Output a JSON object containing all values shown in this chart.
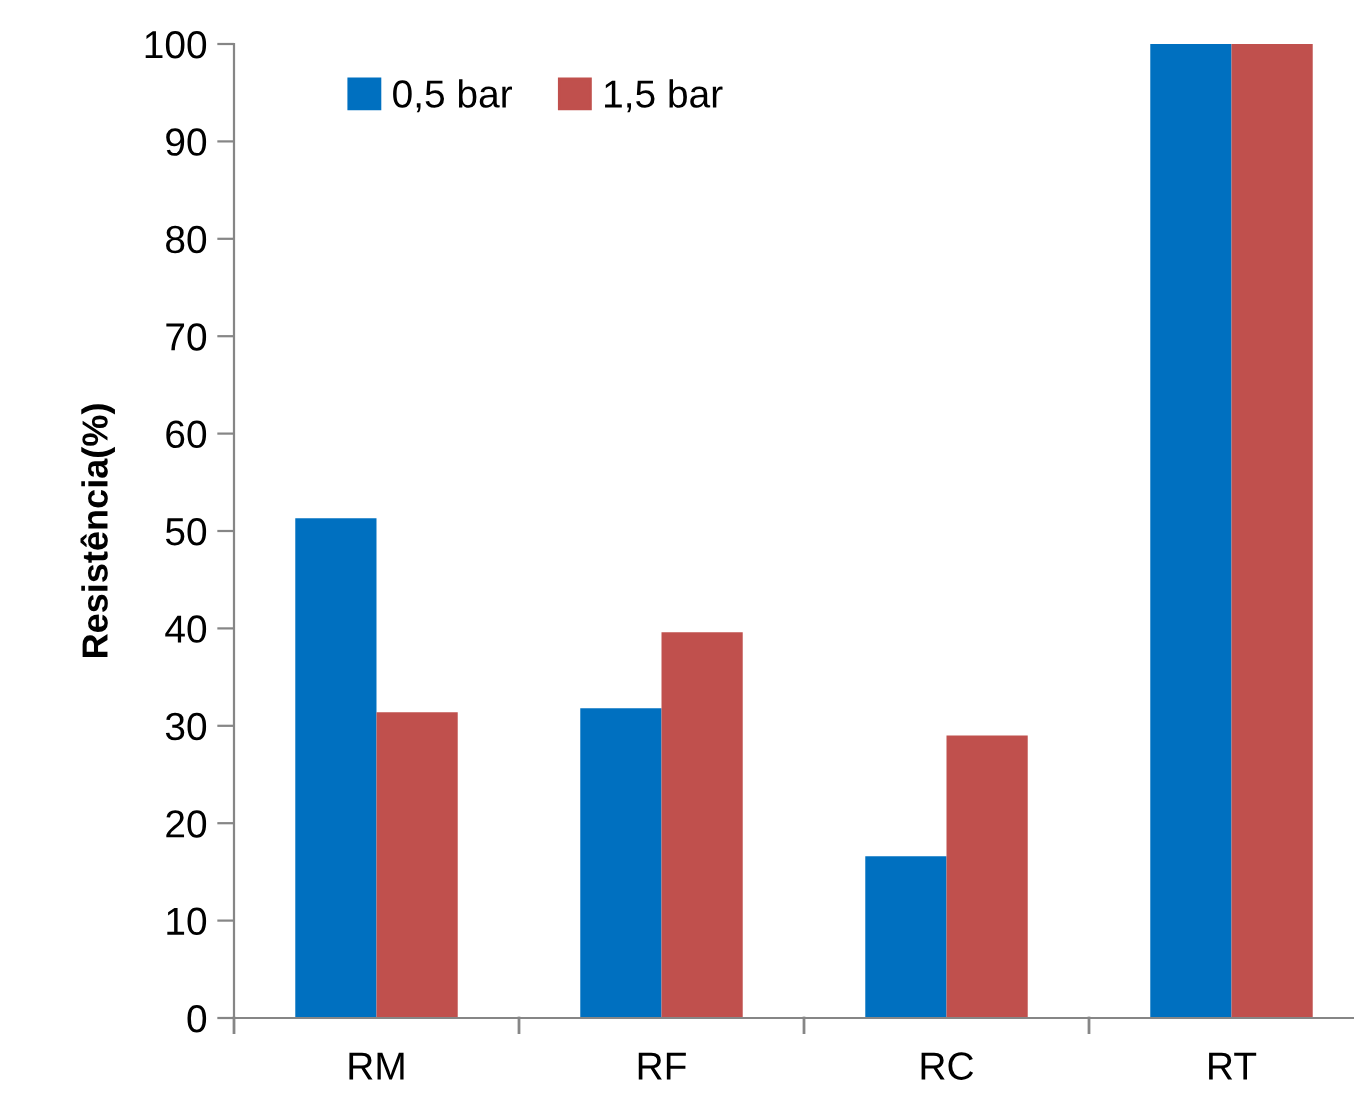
{
  "chart_data": {
    "type": "bar",
    "ylabel": "Resistência(%)",
    "categories": [
      "RM",
      "RF",
      "RC",
      "RT"
    ],
    "series": [
      {
        "name": "0,5 bar",
        "color": "#0070c0",
        "values": [
          51.3,
          31.8,
          16.6,
          100
        ]
      },
      {
        "name": "1,5 bar",
        "color": "#c0504d",
        "values": [
          31.4,
          39.6,
          29.0,
          100
        ]
      }
    ],
    "ylim": [
      0,
      100
    ],
    "yticks": [
      0,
      10,
      20,
      30,
      40,
      50,
      60,
      70,
      80,
      90,
      100
    ],
    "grid": false,
    "legend": "top left"
  }
}
